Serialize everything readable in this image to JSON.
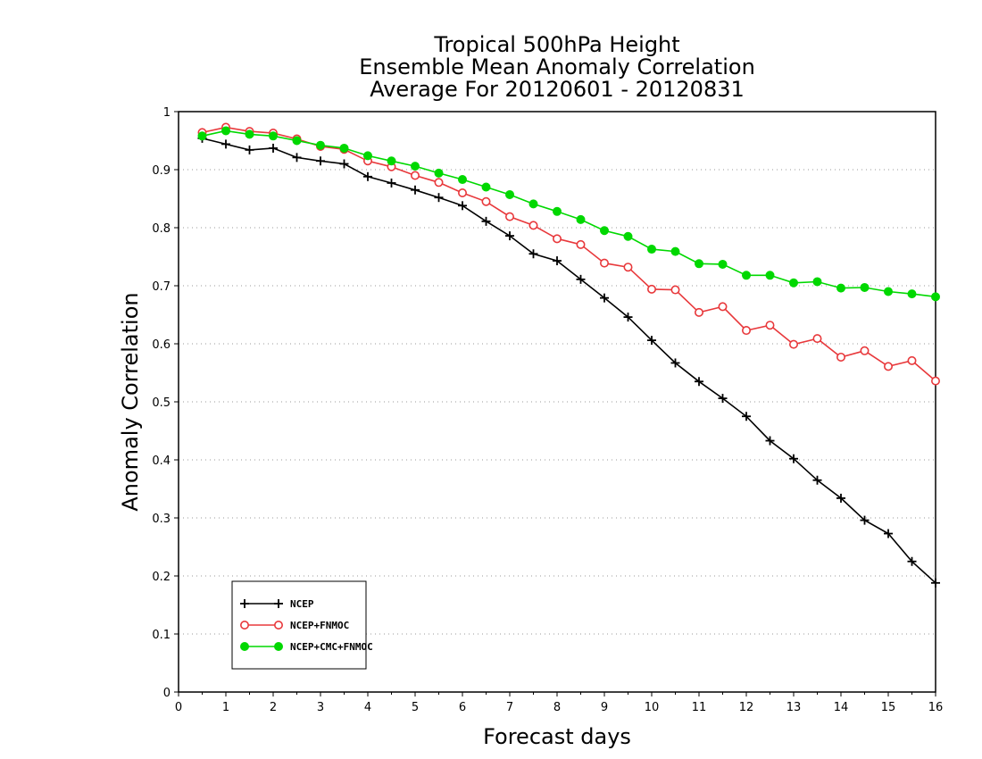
{
  "chart_data": {
    "type": "line",
    "title": [
      "Tropical 500hPa Height",
      "Ensemble Mean Anomaly Correlation",
      "Average For 20120601 - 20120831"
    ],
    "xlabel": "Forecast days",
    "ylabel": "Anomaly Correlation",
    "xlim": [
      0,
      16
    ],
    "ylim": [
      0,
      1
    ],
    "xticks": [
      0,
      1,
      2,
      3,
      4,
      5,
      6,
      7,
      8,
      9,
      10,
      11,
      12,
      13,
      14,
      15,
      16
    ],
    "xtick_labels": [
      "0",
      "1",
      "2",
      "3",
      "4",
      "5",
      "6",
      "7",
      "8",
      "9",
      "10",
      "11",
      "12",
      "13",
      "14",
      "15",
      "16"
    ],
    "yticks": [
      0,
      0.1,
      0.2,
      0.3,
      0.4,
      0.5,
      0.6,
      0.7,
      0.8,
      0.9,
      1
    ],
    "ytick_labels": [
      "0",
      "0.1",
      "0.2",
      "0.3",
      "0.4",
      "0.5",
      "0.6",
      "0.7",
      "0.8",
      "0.9",
      "1"
    ],
    "grid": "horizontal dotted",
    "legend_position": "bottom-left",
    "x": [
      0.5,
      1,
      1.5,
      2,
      2.5,
      3,
      3.5,
      4,
      4.5,
      5,
      5.5,
      6,
      6.5,
      7,
      7.5,
      8,
      8.5,
      9,
      9.5,
      10,
      10.5,
      11,
      11.5,
      12,
      12.5,
      13,
      13.5,
      14,
      14.5,
      15,
      15.5,
      16
    ],
    "series": [
      {
        "name": "NCEP",
        "color": "#000000",
        "marker": "plus",
        "values": [
          0.954,
          0.944,
          0.934,
          0.937,
          0.921,
          0.915,
          0.91,
          0.888,
          0.877,
          0.865,
          0.852,
          0.838,
          0.811,
          0.786,
          0.755,
          0.743,
          0.711,
          0.679,
          0.646,
          0.606,
          0.567,
          0.535,
          0.506,
          0.475,
          0.433,
          0.402,
          0.365,
          0.334,
          0.296,
          0.273,
          0.225,
          0.188
        ]
      },
      {
        "name": "NCEP+FNMOC",
        "color": "#e8383b",
        "marker": "open-circle",
        "values": [
          0.964,
          0.973,
          0.966,
          0.963,
          0.953,
          0.94,
          0.935,
          0.915,
          0.905,
          0.89,
          0.878,
          0.86,
          0.845,
          0.819,
          0.804,
          0.781,
          0.771,
          0.739,
          0.732,
          0.694,
          0.693,
          0.654,
          0.664,
          0.623,
          0.632,
          0.599,
          0.609,
          0.577,
          0.588,
          0.561,
          0.571,
          0.536
        ]
      },
      {
        "name": "NCEP+CMC+FNMOC",
        "color": "#00d800",
        "marker": "filled-circle",
        "values": [
          0.958,
          0.967,
          0.961,
          0.958,
          0.95,
          0.942,
          0.937,
          0.924,
          0.915,
          0.906,
          0.894,
          0.883,
          0.87,
          0.857,
          0.841,
          0.828,
          0.814,
          0.795,
          0.785,
          0.763,
          0.759,
          0.738,
          0.737,
          0.718,
          0.718,
          0.705,
          0.707,
          0.696,
          0.697,
          0.69,
          0.686,
          0.681
        ]
      }
    ]
  }
}
